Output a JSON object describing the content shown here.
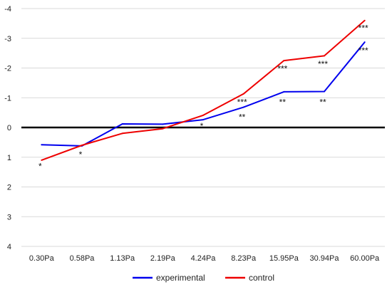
{
  "chart_data": {
    "type": "line",
    "categories": [
      "0.30Pa",
      "0.58Pa",
      "1.13Pa",
      "2.19Pa",
      "4.24Pa",
      "8.23Pa",
      "15.95Pa",
      "30.94Pa",
      "60.00Pa"
    ],
    "series": [
      {
        "name": "experimental",
        "color": "#0000ee",
        "values": [
          0.58,
          0.62,
          -0.12,
          -0.11,
          -0.26,
          -0.68,
          -1.2,
          -1.21,
          -2.87
        ]
      },
      {
        "name": "control",
        "color": "#ee0000",
        "values": [
          1.1,
          0.6,
          0.2,
          0.04,
          -0.41,
          -1.13,
          -2.25,
          -2.41,
          -3.6
        ]
      }
    ],
    "y_ticks": [
      "-4",
      "-3",
      "-2",
      "-1",
      "0",
      "1",
      "2",
      "3",
      "4"
    ],
    "ylim": [
      -4,
      4
    ],
    "y_inverted": true,
    "grid": true,
    "zero_line": true,
    "legend_position": "bottom",
    "annotations": [
      {
        "category": "0.30Pa",
        "text": "*",
        "y": 1.4
      },
      {
        "category": "0.58Pa",
        "text": "*",
        "y": 1.0
      },
      {
        "category": "4.24Pa",
        "text": "*",
        "y": 0.05
      },
      {
        "category": "8.23Pa",
        "text": "***",
        "y": -0.76
      },
      {
        "category": "8.23Pa",
        "text": "**",
        "y": -0.25
      },
      {
        "category": "15.95Pa",
        "text": "***",
        "y": -1.88
      },
      {
        "category": "15.95Pa",
        "text": "**",
        "y": -0.75
      },
      {
        "category": "30.94Pa",
        "text": "***",
        "y": -2.04
      },
      {
        "category": "30.94Pa",
        "text": "**",
        "y": -0.75
      },
      {
        "category": "60.00Pa",
        "text": "***",
        "y": -3.25
      },
      {
        "category": "60.00Pa",
        "text": "***",
        "y": -2.49
      }
    ]
  }
}
